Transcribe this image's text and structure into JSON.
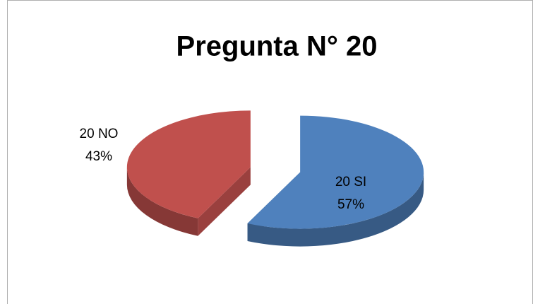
{
  "chart_data": {
    "type": "pie",
    "title": "Pregunta N° 20",
    "categories": [
      "20 SI",
      "20 NO"
    ],
    "values": [
      57,
      43
    ],
    "value_labels": [
      "57%",
      "43%"
    ],
    "colors": [
      "#4f81bd",
      "#c0504d"
    ]
  }
}
